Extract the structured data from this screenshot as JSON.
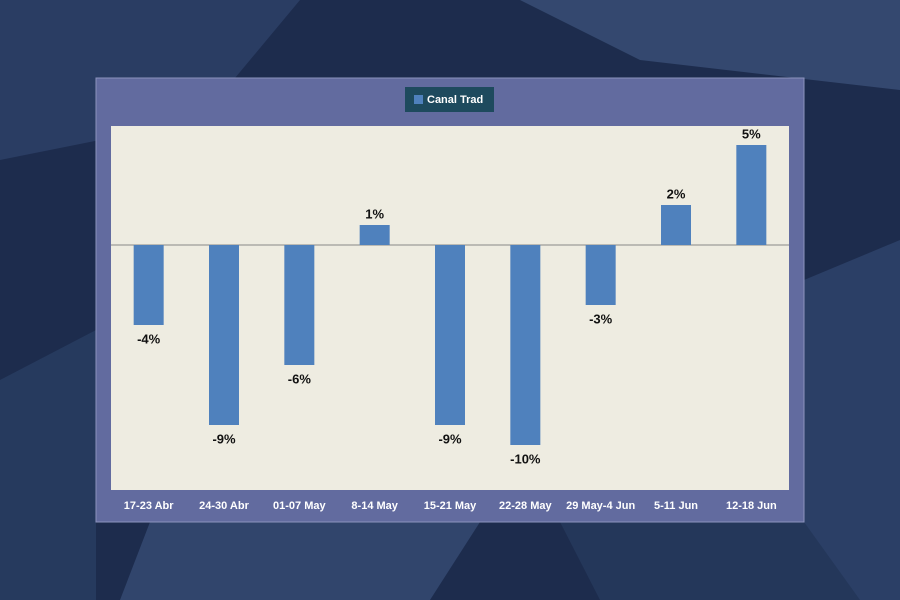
{
  "chart_data": {
    "type": "bar",
    "legend": "Canal Trad",
    "categories": [
      "17-23 Abr",
      "24-30 Abr",
      "01-07 May",
      "8-14 May",
      "15-21 May",
      "22-28 May",
      "29 May-4 Jun",
      "5-11 Jun",
      "12-18 Jun"
    ],
    "series": [
      {
        "name": "Canal Trad",
        "color": "#4f81bd",
        "values": [
          -4,
          -9,
          -6,
          1,
          -9,
          -10,
          -3,
          2,
          5
        ],
        "value_labels": [
          "-4%",
          "-9%",
          "-6%",
          "1%",
          "-9%",
          "-10%",
          "-3%",
          "2%",
          "5%"
        ]
      }
    ],
    "ylim": [
      -12.25,
      5.95
    ]
  }
}
